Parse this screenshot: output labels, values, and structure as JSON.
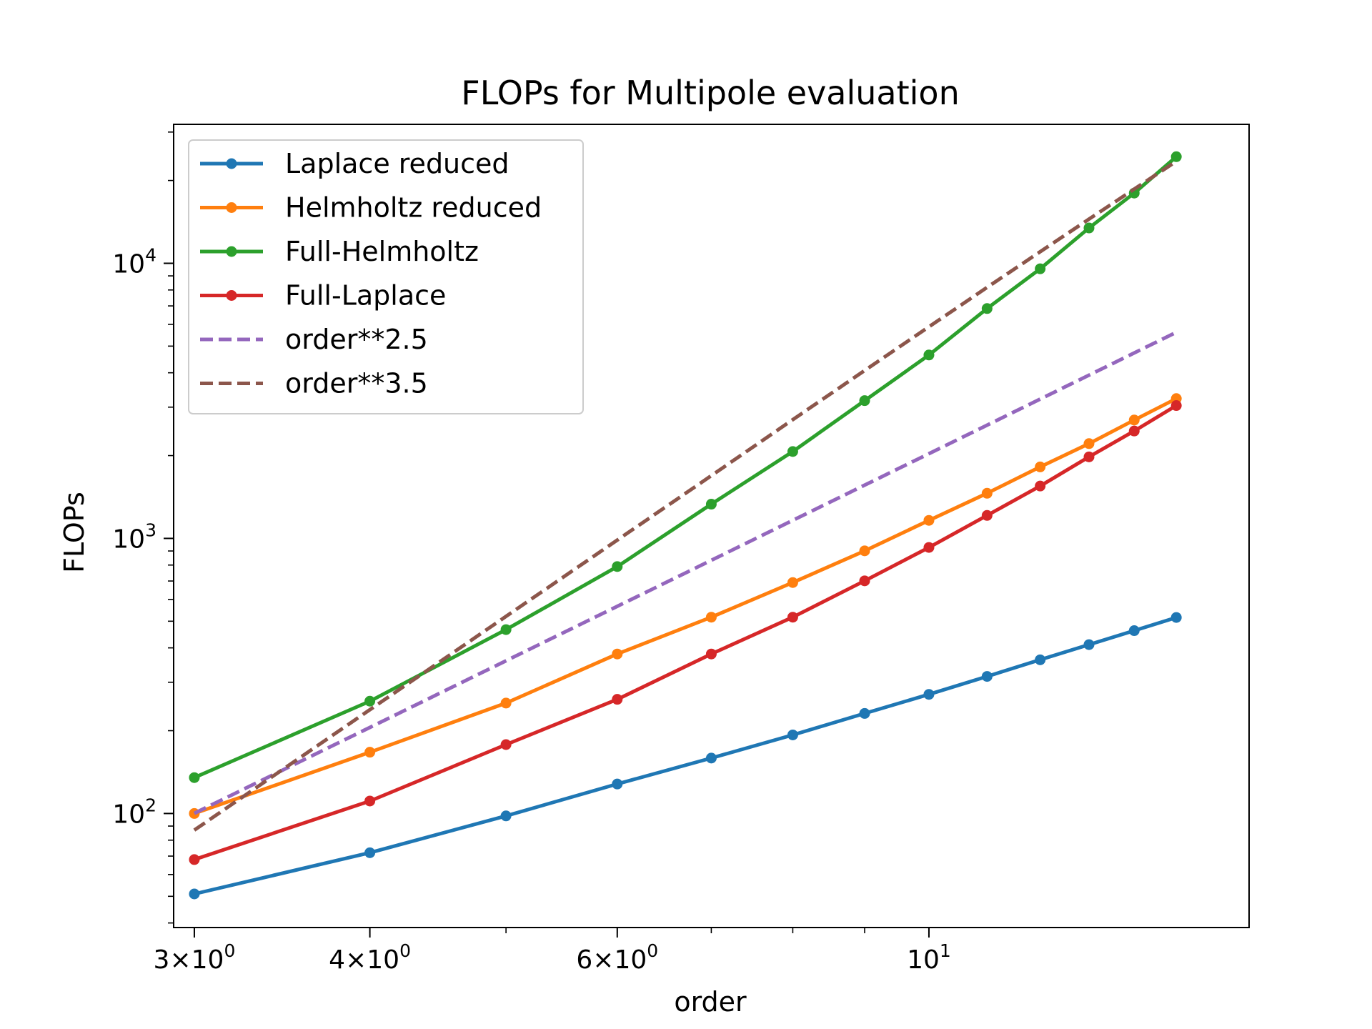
{
  "chart_data": {
    "type": "line",
    "title": "FLOPs for Multipole evaluation",
    "xlabel": "order",
    "ylabel": "FLOPs",
    "xscale": "log",
    "yscale": "log",
    "xlim": [
      2.9,
      16.9
    ],
    "ylim": [
      38.5,
      32000
    ],
    "grid": false,
    "legend_position": "top-left",
    "x": [
      3,
      4,
      5,
      6,
      7,
      8,
      9,
      10,
      11,
      12,
      13,
      14,
      15
    ],
    "series": [
      {
        "name": "Laplace reduced",
        "style": "solid",
        "marker": "dot",
        "color": "#1f77b4",
        "values": [
          51,
          72,
          98,
          128,
          159,
          193,
          231,
          271,
          315,
          362,
          411,
          462,
          516
        ]
      },
      {
        "name": "Helmholtz reduced",
        "style": "solid",
        "marker": "dot",
        "color": "#ff7f0e",
        "values": [
          100,
          167,
          252,
          380,
          517,
          691,
          901,
          1163,
          1459,
          1819,
          2211,
          2693,
          3223
        ]
      },
      {
        "name": "Full-Helmholtz",
        "style": "solid",
        "marker": "dot",
        "color": "#2ca02c",
        "values": [
          135,
          256,
          466,
          790,
          1332,
          2069,
          3168,
          4642,
          6847,
          9549,
          13440,
          17999,
          24407
        ]
      },
      {
        "name": "Full-Laplace",
        "style": "solid",
        "marker": "dot",
        "color": "#d62728",
        "values": [
          68,
          111,
          178,
          260,
          380,
          517,
          701,
          927,
          1212,
          1550,
          1979,
          2457,
          3040
        ]
      },
      {
        "name": "order**2.5",
        "style": "dashed",
        "marker": "none",
        "color": "#9467bd",
        "values": [
          100.1,
          205.5,
          359.0,
          566.3,
          832.6,
          1162.9,
          1561.5,
          2032.5,
          2580.2,
          3208.7,
          3921.3,
          4722.3,
          5614.9
        ]
      },
      {
        "name": "order**3.5",
        "style": "dashed",
        "marker": "none",
        "color": "#8c564b",
        "values": [
          87,
          238.4,
          520.6,
          985.7,
          1690,
          2702,
          4077,
          5879,
          8172,
          11015,
          14476,
          18613,
          23490
        ]
      }
    ],
    "xticks": [
      {
        "value": 3,
        "mantissa": "3",
        "exponent": "0"
      },
      {
        "value": 4,
        "mantissa": "4",
        "exponent": "0"
      },
      {
        "value": 6,
        "mantissa": "6",
        "exponent": "0"
      },
      {
        "value": 10,
        "mantissa": "",
        "exponent": "1"
      }
    ],
    "yticks": [
      {
        "value": 100,
        "exponent": "2"
      },
      {
        "value": 1000,
        "exponent": "3"
      },
      {
        "value": 10000,
        "exponent": "4"
      }
    ]
  }
}
